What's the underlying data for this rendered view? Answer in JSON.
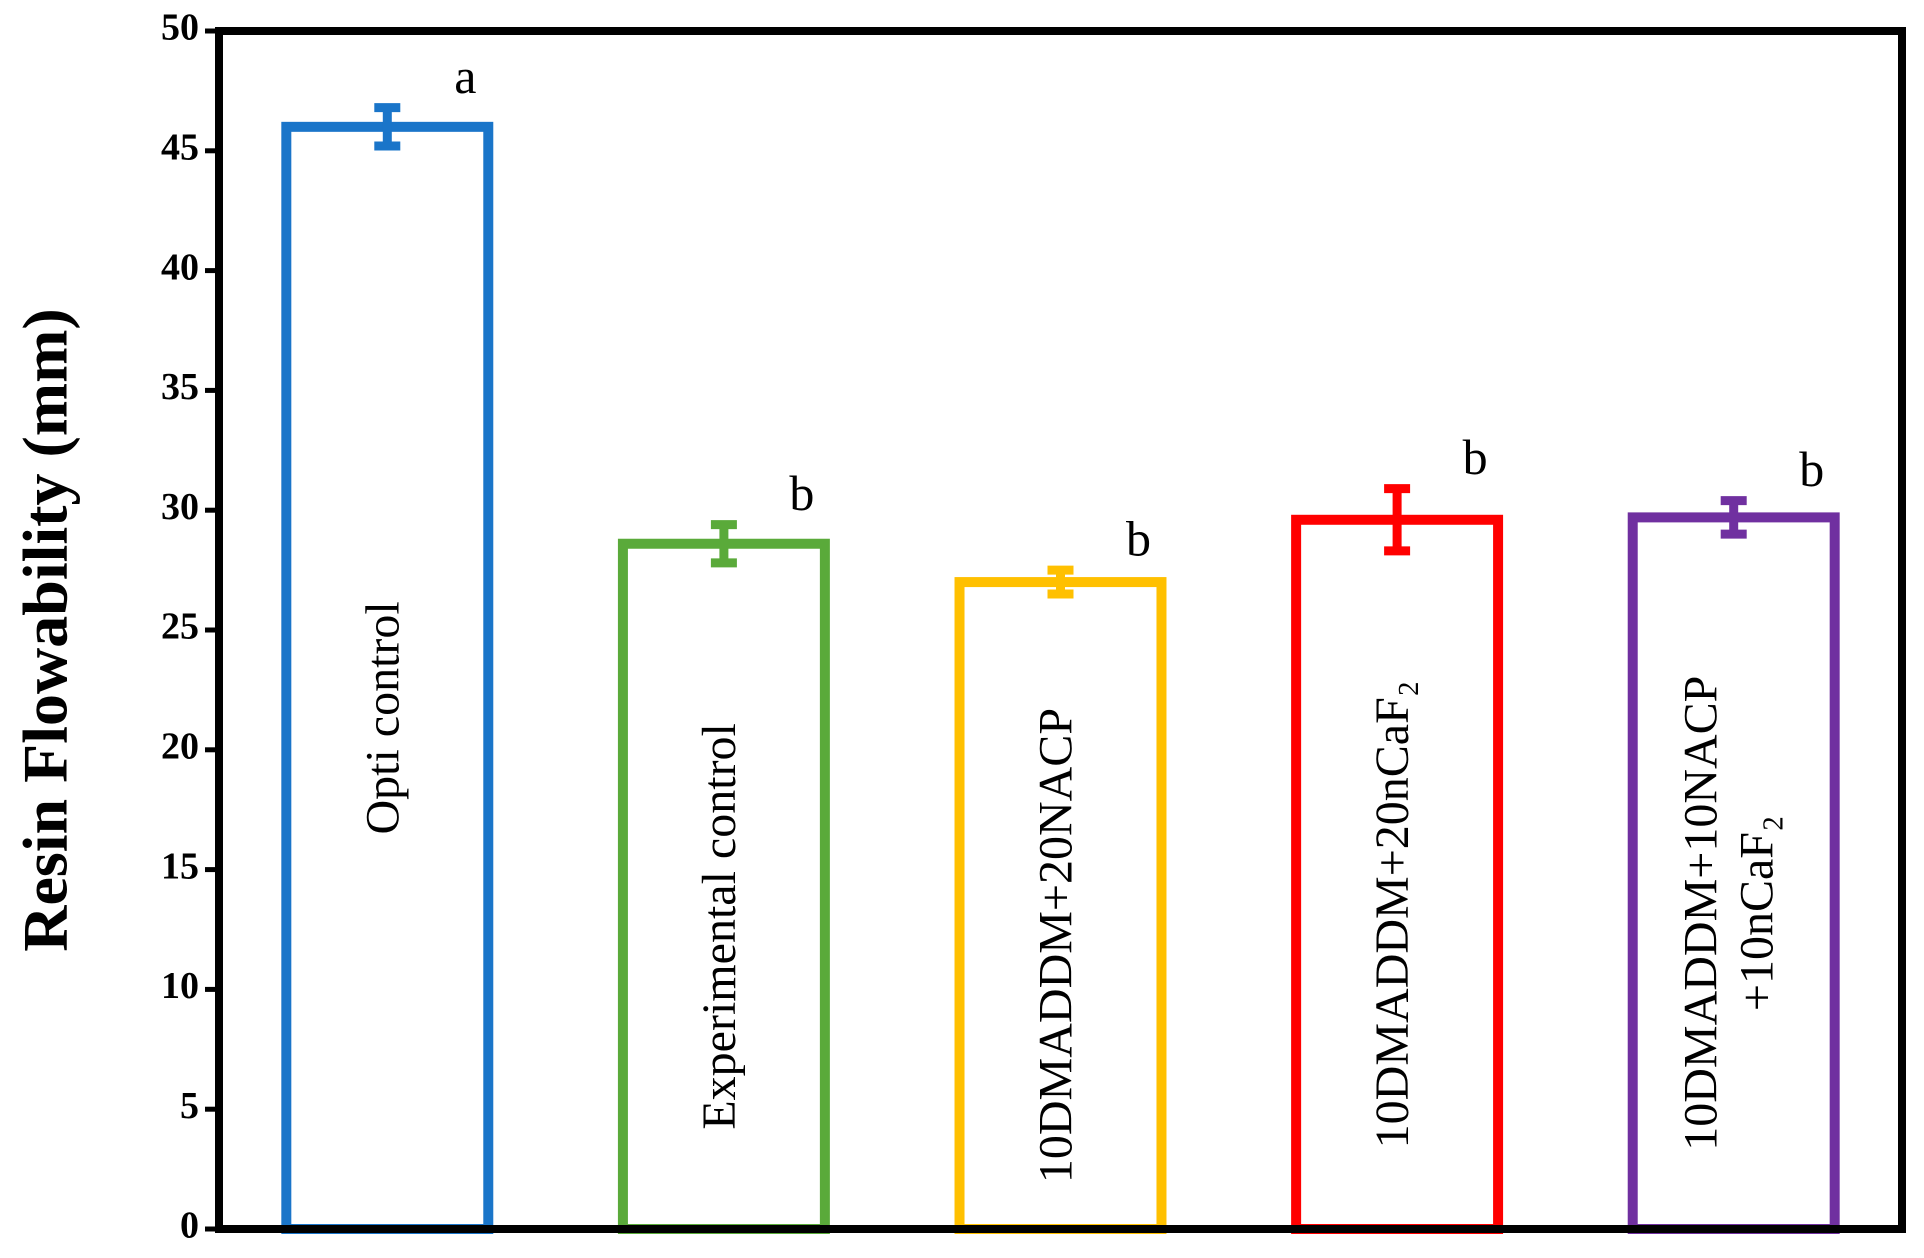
{
  "chart_data": {
    "type": "bar",
    "y_label": "Resin Flowability (mm)",
    "categories": [
      "Opti control",
      "Experimental control",
      "10DMADDM+20NACP",
      "10DMADDM+20nCaF₂",
      "10DMADDM+10NACP\n+10nCaF₂"
    ],
    "values": [
      46.0,
      28.6,
      27.0,
      29.6,
      29.7
    ],
    "errors": [
      0.8,
      0.8,
      0.5,
      1.3,
      0.7
    ],
    "colors": [
      "#1a75c9",
      "#5aaa3a",
      "#ffc000",
      "#ff0000",
      "#7030a0"
    ],
    "annotations": [
      "a",
      "b",
      "b",
      "b",
      "b"
    ],
    "ylim": [
      0,
      50
    ],
    "yticks": [
      0,
      5,
      10,
      15,
      20,
      25,
      30,
      35,
      40,
      45,
      50
    ]
  }
}
